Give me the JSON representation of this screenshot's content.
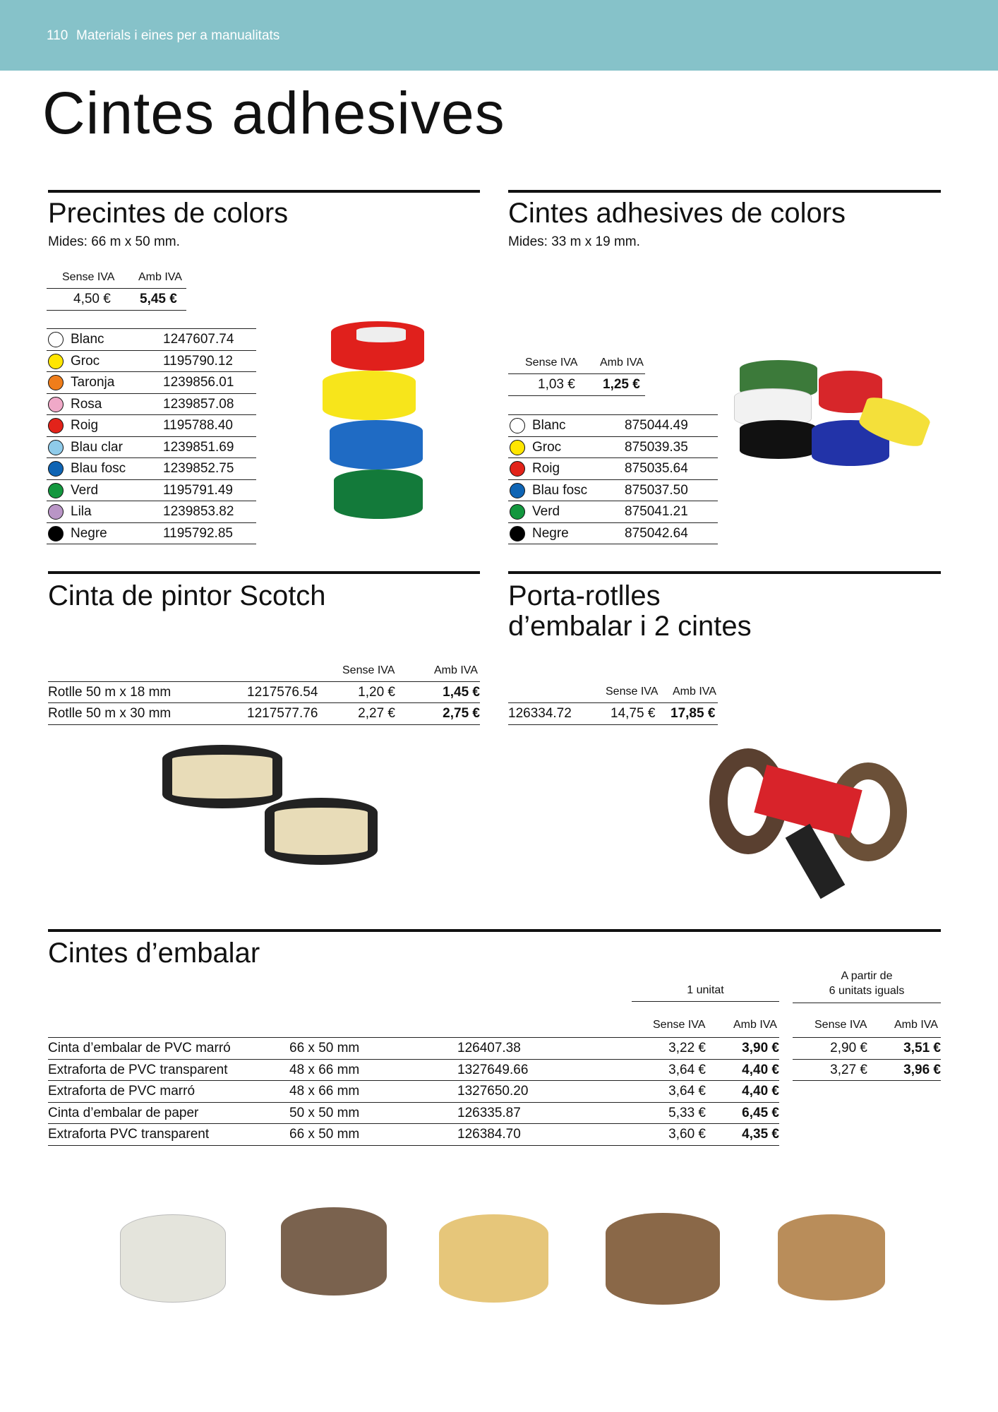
{
  "header": {
    "page_number": "110",
    "section": "Materials i eines per a manualitats",
    "band_color": "#86c2c9"
  },
  "title": "Cintes adhesives",
  "precintes": {
    "title": "Precintes de colors",
    "sizes": "Mides: 66 m x 50 mm.",
    "price_headers": [
      "Sense IVA",
      "Amb IVA"
    ],
    "price_net": "4,50 €",
    "price_vat": "5,45 €",
    "colors": [
      {
        "name": "Blanc",
        "code": "1247607.74",
        "color": "#ffffff"
      },
      {
        "name": "Groc",
        "code": "1195790.12",
        "color": "#ffe600"
      },
      {
        "name": "Taronja",
        "code": "1239856.01",
        "color": "#ef7d1a"
      },
      {
        "name": "Rosa",
        "code": "1239857.08",
        "color": "#f0a9c8"
      },
      {
        "name": "Roig",
        "code": "1195788.40",
        "color": "#e2231a"
      },
      {
        "name": "Blau clar",
        "code": "1239851.69",
        "color": "#8fcbea"
      },
      {
        "name": "Blau fosc",
        "code": "1239852.75",
        "color": "#0e64b4"
      },
      {
        "name": "Verd",
        "code": "1195791.49",
        "color": "#13973e"
      },
      {
        "name": "Lila",
        "code": "1239853.82",
        "color": "#b995c6"
      },
      {
        "name": "Negre",
        "code": "1195792.85",
        "color": "#000000"
      }
    ]
  },
  "cintes_colors": {
    "title": "Cintes adhesives de colors",
    "sizes": "Mides: 33 m x 19 mm.",
    "price_headers": [
      "Sense IVA",
      "Amb IVA"
    ],
    "price_net": "1,03 €",
    "price_vat": "1,25 €",
    "colors": [
      {
        "name": "Blanc",
        "code": "875044.49",
        "color": "#ffffff"
      },
      {
        "name": "Groc",
        "code": "875039.35",
        "color": "#ffe600"
      },
      {
        "name": "Roig",
        "code": "875035.64",
        "color": "#e2231a"
      },
      {
        "name": "Blau fosc",
        "code": "875037.50",
        "color": "#0e64b4"
      },
      {
        "name": "Verd",
        "code": "875041.21",
        "color": "#13973e"
      },
      {
        "name": "Negre",
        "code": "875042.64",
        "color": "#000000"
      }
    ]
  },
  "scotch": {
    "title": "Cinta de pintor Scotch",
    "headers": [
      "Sense IVA",
      "Amb IVA"
    ],
    "rows": [
      {
        "name": "Rotlle 50 m x 18 mm",
        "code": "1217576.54",
        "net": "1,20 €",
        "vat": "1,45 €"
      },
      {
        "name": "Rotlle 50 m x 30 mm",
        "code": "1217577.76",
        "net": "2,27 €",
        "vat": "2,75 €"
      }
    ]
  },
  "porta": {
    "title_line1": "Porta-rotlles",
    "title_line2": "d’embalar i 2 cintes",
    "headers": [
      "Sense IVA",
      "Amb IVA"
    ],
    "code": "126334.72",
    "net": "14,75 €",
    "vat": "17,85 €"
  },
  "embalar": {
    "title": "Cintes d’embalar",
    "group1": "1 unitat",
    "group2_line1": "A partir de",
    "group2_line2": "6 unitats iguals",
    "headers": [
      "Sense IVA",
      "Amb IVA",
      "Sense IVA",
      "Amb IVA"
    ],
    "rows": [
      {
        "name": "Cinta d’embalar de PVC marró",
        "size": "66 x 50 mm",
        "code": "126407.38",
        "net": "3,22 €",
        "vat": "3,90 €",
        "net6": "2,90 €",
        "vat6": "3,51 €"
      },
      {
        "name": "Extraforta de PVC transparent",
        "size": "48 x 66 mm",
        "code": "1327649.66",
        "net": "3,64 €",
        "vat": "4,40 €",
        "net6": "3,27 €",
        "vat6": "3,96 €"
      },
      {
        "name": "Extraforta de PVC marró",
        "size": "48 x 66 mm",
        "code": "1327650.20",
        "net": "3,64 €",
        "vat": "4,40 €"
      },
      {
        "name": "Cinta d’embalar de paper",
        "size": "50 x 50 mm",
        "code": "126335.87",
        "net": "5,33 €",
        "vat": "6,45 €"
      },
      {
        "name": "Extraforta PVC transparent",
        "size": "66 x 50 mm",
        "code": "126384.70",
        "net": "3,60 €",
        "vat": "4,35 €"
      }
    ]
  }
}
